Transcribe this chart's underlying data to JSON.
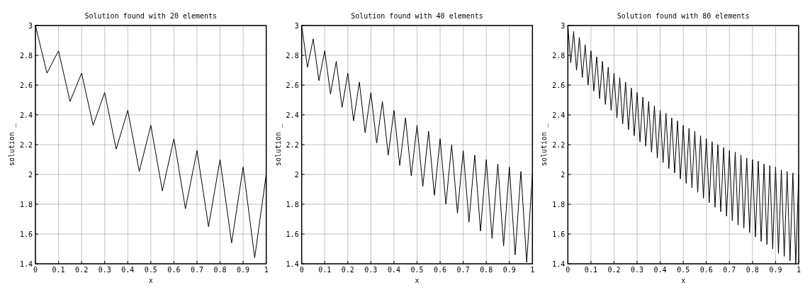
{
  "chart_data": [
    {
      "type": "line",
      "title": "Solution found with 20 elements",
      "xlabel": "x",
      "ylabel": "solution _",
      "xlim": [
        0,
        1
      ],
      "ylim": [
        1.4,
        3
      ],
      "xticks": [
        0,
        0.1,
        0.2,
        0.3,
        0.4,
        0.5,
        0.6,
        0.7,
        0.8,
        0.9,
        1
      ],
      "yticks": [
        1.4,
        1.6,
        1.8,
        2,
        2.2,
        2.4,
        2.6,
        2.8,
        3
      ],
      "grid": true,
      "series": [
        {
          "color": "#000000",
          "x": [
            0,
            0.05,
            0.1,
            0.15,
            0.2,
            0.25,
            0.3,
            0.35,
            0.4,
            0.45,
            0.5,
            0.55,
            0.6,
            0.65,
            0.7,
            0.75,
            0.8,
            0.85,
            0.9,
            0.95,
            1
          ],
          "values": [
            3,
            2.68,
            2.83,
            2.49,
            2.68,
            2.33,
            2.55,
            2.17,
            2.43,
            2.02,
            2.33,
            1.89,
            2.24,
            1.77,
            2.16,
            1.65,
            2.1,
            1.54,
            2.05,
            1.44,
            2.0
          ]
        }
      ]
    },
    {
      "type": "line",
      "title": "Solution found with 40 elements",
      "xlabel": "x",
      "ylabel": "solution _",
      "xlim": [
        0,
        1
      ],
      "ylim": [
        1.4,
        3
      ],
      "xticks": [
        0,
        0.1,
        0.2,
        0.3,
        0.4,
        0.5,
        0.6,
        0.7,
        0.8,
        0.9,
        1
      ],
      "yticks": [
        1.4,
        1.6,
        1.8,
        2,
        2.2,
        2.4,
        2.6,
        2.8,
        3
      ],
      "grid": true,
      "series": [
        {
          "color": "#000000",
          "x": [
            0,
            0.025,
            0.05,
            0.075,
            0.1,
            0.125,
            0.15,
            0.175,
            0.2,
            0.225,
            0.25,
            0.275,
            0.3,
            0.325,
            0.35,
            0.375,
            0.4,
            0.425,
            0.45,
            0.475,
            0.5,
            0.525,
            0.55,
            0.575,
            0.6,
            0.625,
            0.65,
            0.675,
            0.7,
            0.725,
            0.75,
            0.775,
            0.8,
            0.825,
            0.85,
            0.875,
            0.9,
            0.925,
            0.95,
            0.975,
            1
          ],
          "values": [
            3,
            2.72,
            2.91,
            2.63,
            2.83,
            2.54,
            2.76,
            2.45,
            2.68,
            2.36,
            2.62,
            2.28,
            2.55,
            2.21,
            2.49,
            2.13,
            2.43,
            2.06,
            2.38,
            1.99,
            2.33,
            1.92,
            2.29,
            1.86,
            2.24,
            1.8,
            2.2,
            1.74,
            2.16,
            1.68,
            2.13,
            1.62,
            2.1,
            1.57,
            2.07,
            1.52,
            2.05,
            1.46,
            2.02,
            1.41,
            2.0
          ]
        }
      ]
    },
    {
      "type": "line",
      "title": "Solution found with 80 elements",
      "xlabel": "x",
      "ylabel": "solution _",
      "xlim": [
        0,
        1
      ],
      "ylim": [
        1.4,
        3
      ],
      "xticks": [
        0,
        0.1,
        0.2,
        0.3,
        0.4,
        0.5,
        0.6,
        0.7,
        0.8,
        0.9,
        1
      ],
      "yticks": [
        1.4,
        1.6,
        1.8,
        2,
        2.2,
        2.4,
        2.6,
        2.8,
        3
      ],
      "grid": true,
      "series": [
        {
          "color": "#000000",
          "x": [
            0,
            0.0125,
            0.025,
            0.0375,
            0.05,
            0.0625,
            0.075,
            0.0875,
            0.1,
            0.1125,
            0.125,
            0.1375,
            0.15,
            0.1625,
            0.175,
            0.1875,
            0.2,
            0.2125,
            0.225,
            0.2375,
            0.25,
            0.2625,
            0.275,
            0.2875,
            0.3,
            0.3125,
            0.325,
            0.3375,
            0.35,
            0.3625,
            0.375,
            0.3875,
            0.4,
            0.4125,
            0.425,
            0.4375,
            0.45,
            0.4625,
            0.475,
            0.4875,
            0.5,
            0.5125,
            0.525,
            0.5375,
            0.55,
            0.5625,
            0.575,
            0.5875,
            0.6,
            0.6125,
            0.625,
            0.6375,
            0.65,
            0.6625,
            0.675,
            0.6875,
            0.7,
            0.7125,
            0.725,
            0.7375,
            0.75,
            0.7625,
            0.775,
            0.7875,
            0.8,
            0.8125,
            0.825,
            0.8375,
            0.85,
            0.8625,
            0.875,
            0.8875,
            0.9,
            0.9125,
            0.925,
            0.9375,
            0.95,
            0.9625,
            0.975,
            0.9875,
            1
          ],
          "values": [
            3,
            2.75,
            2.96,
            2.7,
            2.92,
            2.65,
            2.87,
            2.6,
            2.83,
            2.56,
            2.79,
            2.51,
            2.76,
            2.47,
            2.72,
            2.43,
            2.68,
            2.38,
            2.65,
            2.34,
            2.62,
            2.3,
            2.58,
            2.26,
            2.55,
            2.22,
            2.52,
            2.19,
            2.49,
            2.15,
            2.46,
            2.11,
            2.43,
            2.08,
            2.41,
            2.04,
            2.38,
            2.01,
            2.36,
            1.97,
            2.33,
            1.94,
            2.31,
            1.91,
            2.29,
            1.88,
            2.26,
            1.84,
            2.24,
            1.81,
            2.22,
            1.78,
            2.2,
            1.75,
            2.18,
            1.72,
            2.16,
            1.69,
            2.15,
            1.66,
            2.13,
            1.64,
            2.11,
            1.61,
            2.1,
            1.58,
            2.09,
            1.55,
            2.07,
            1.53,
            2.06,
            1.5,
            2.05,
            1.47,
            2.03,
            1.45,
            2.02,
            1.42,
            2.01,
            1.4,
            2.0
          ]
        }
      ]
    }
  ]
}
